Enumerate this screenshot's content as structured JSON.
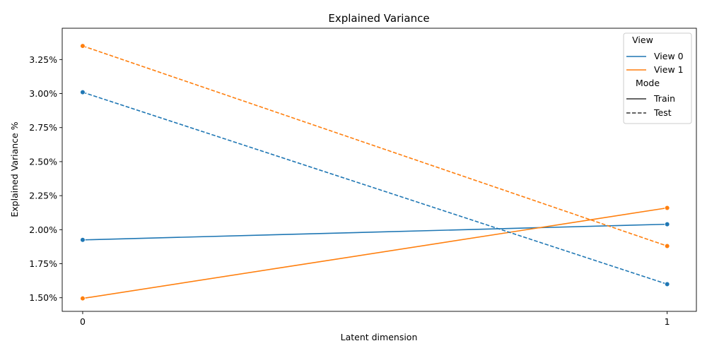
{
  "chart_data": {
    "type": "line",
    "title": "Explained Variance",
    "xlabel": "Latent dimension",
    "ylabel": "Explained Variance %",
    "x": [
      0,
      1
    ],
    "x_ticks": [
      "0",
      "1"
    ],
    "xlim": [
      -0.035,
      1.05
    ],
    "ylim": [
      1.4,
      3.48
    ],
    "y_ticks": [
      1.5,
      1.75,
      2.0,
      2.25,
      2.5,
      2.75,
      3.0,
      3.25
    ],
    "y_tick_labels": [
      "1.50%",
      "1.75%",
      "2.00%",
      "2.25%",
      "2.50%",
      "2.75%",
      "3.00%",
      "3.25%"
    ],
    "grid": false,
    "series": [
      {
        "view": "View 0",
        "mode": "Train",
        "color": "#1f77b4",
        "dash": "solid",
        "values": [
          1.925,
          2.04
        ]
      },
      {
        "view": "View 1",
        "mode": "Train",
        "color": "#ff7f0e",
        "dash": "solid",
        "values": [
          1.495,
          2.16
        ]
      },
      {
        "view": "View 0",
        "mode": "Test",
        "color": "#1f77b4",
        "dash": "dashed",
        "values": [
          3.01,
          1.6
        ]
      },
      {
        "view": "View 1",
        "mode": "Test",
        "color": "#ff7f0e",
        "dash": "dashed",
        "values": [
          3.35,
          1.88
        ]
      }
    ],
    "legend": {
      "placement": "top-right",
      "hue_title": "View",
      "hue_entries": [
        {
          "label": "View 0",
          "color": "#1f77b4"
        },
        {
          "label": "View 1",
          "color": "#ff7f0e"
        }
      ],
      "style_title": "Mode",
      "style_entries": [
        {
          "label": "Train",
          "dash": "solid"
        },
        {
          "label": "Test",
          "dash": "dashed"
        }
      ]
    }
  }
}
